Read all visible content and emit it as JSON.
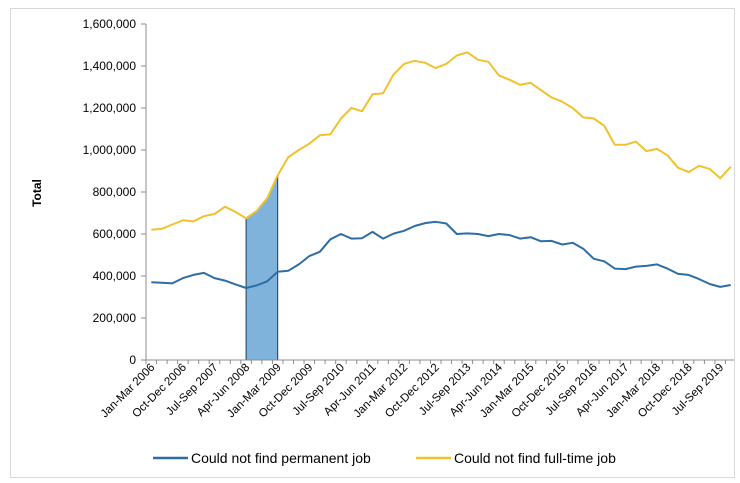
{
  "chart_data": {
    "type": "line",
    "ylabel": "Total",
    "xlabel": "",
    "ylim": [
      0,
      1600000
    ],
    "yticks": [
      0,
      200000,
      400000,
      600000,
      800000,
      1000000,
      1200000,
      1400000,
      1600000
    ],
    "ytick_labels": [
      "0",
      "200,000",
      "400,000",
      "600,000",
      "800,000",
      "1,000,000",
      "1,200,000",
      "1,400,000",
      "1,600,000"
    ],
    "grid": false,
    "legend_position": "bottom",
    "x": [
      "Jan-Mar 2006",
      "Apr-Jun 2006",
      "Jul-Sep 2006",
      "Oct-Dec 2006",
      "Jan-Mar 2007",
      "Apr-Jun 2007",
      "Jul-Sep 2007",
      "Oct-Dec 2007",
      "Jan-Mar 2008",
      "Apr-Jun 2008",
      "Jul-Sep 2008",
      "Oct-Dec 2008",
      "Jan-Mar 2009",
      "Apr-Jun 2009",
      "Jul-Sep 2009",
      "Oct-Dec 2009",
      "Jan-Mar 2010",
      "Apr-Jun 2010",
      "Jul-Sep 2010",
      "Oct-Dec 2010",
      "Jan-Mar 2011",
      "Apr-Jun 2011",
      "Jul-Sep 2011",
      "Oct-Dec 2011",
      "Jan-Mar 2012",
      "Apr-Jun 2012",
      "Jul-Sep 2012",
      "Oct-Dec 2012",
      "Jan-Mar 2013",
      "Apr-Jun 2013",
      "Jul-Sep 2013",
      "Oct-Dec 2013",
      "Jan-Mar 2014",
      "Apr-Jun 2014",
      "Jul-Sep 2014",
      "Oct-Dec 2014",
      "Jan-Mar 2015",
      "Apr-Jun 2015",
      "Jul-Sep 2015",
      "Oct-Dec 2015",
      "Jan-Mar 2016",
      "Apr-Jun 2016",
      "Jul-Sep 2016",
      "Oct-Dec 2016",
      "Jan-Mar 2017",
      "Apr-Jun 2017",
      "Jul-Sep 2017",
      "Oct-Dec 2017",
      "Jan-Mar 2018",
      "Apr-Jun 2018",
      "Jul-Sep 2018",
      "Oct-Dec 2018",
      "Jan-Mar 2019",
      "Apr-Jun 2019",
      "Jul-Sep 2019",
      "Oct-Dec 2019"
    ],
    "x_tick_labels": [
      "Jan-Mar 2006",
      "Oct-Dec 2006",
      "Jul-Sep 2007",
      "Apr-Jun 2008",
      "Jan-Mar 2009",
      "Oct-Dec 2009",
      "Jul-Sep 2010",
      "Apr-Jun 2011",
      "Jan-Mar 2012",
      "Oct-Dec 2012",
      "Jul-Sep 2013",
      "Apr-Jun 2014",
      "Jan-Mar 2015",
      "Oct-Dec 2015",
      "Jul-Sep 2016",
      "Apr-Jun 2017",
      "Jan-Mar 2018",
      "Oct-Dec 2018",
      "Jul-Sep 2019"
    ],
    "series": [
      {
        "name": "Could not find permanent job",
        "color": "#2e6da4",
        "values": [
          370000,
          368000,
          365000,
          390000,
          405000,
          415000,
          390000,
          378000,
          360000,
          343000,
          355000,
          375000,
          420000,
          425000,
          455000,
          495000,
          515000,
          575000,
          600000,
          578000,
          580000,
          610000,
          578000,
          602000,
          615000,
          638000,
          652000,
          658000,
          650000,
          600000,
          603000,
          600000,
          590000,
          600000,
          595000,
          578000,
          585000,
          565000,
          567000,
          550000,
          558000,
          530000,
          482000,
          470000,
          435000,
          433000,
          445000,
          448000,
          455000,
          435000,
          410000,
          405000,
          385000,
          362000,
          348000,
          357000
        ]
      },
      {
        "name": "Could not find full-time job",
        "color": "#f2c12e",
        "values": [
          620000,
          625000,
          645000,
          665000,
          660000,
          685000,
          695000,
          730000,
          705000,
          675000,
          710000,
          770000,
          880000,
          965000,
          1000000,
          1030000,
          1070000,
          1075000,
          1150000,
          1200000,
          1185000,
          1265000,
          1270000,
          1360000,
          1410000,
          1425000,
          1415000,
          1390000,
          1410000,
          1450000,
          1465000,
          1430000,
          1420000,
          1355000,
          1335000,
          1310000,
          1320000,
          1285000,
          1250000,
          1230000,
          1200000,
          1155000,
          1150000,
          1115000,
          1025000,
          1025000,
          1040000,
          995000,
          1005000,
          975000,
          915000,
          895000,
          925000,
          910000,
          865000,
          920000
        ]
      }
    ],
    "shaded_region": {
      "from": "Apr-Jun 2008",
      "to": "Jan-Mar 2009",
      "color": "#7fb3dc"
    }
  }
}
